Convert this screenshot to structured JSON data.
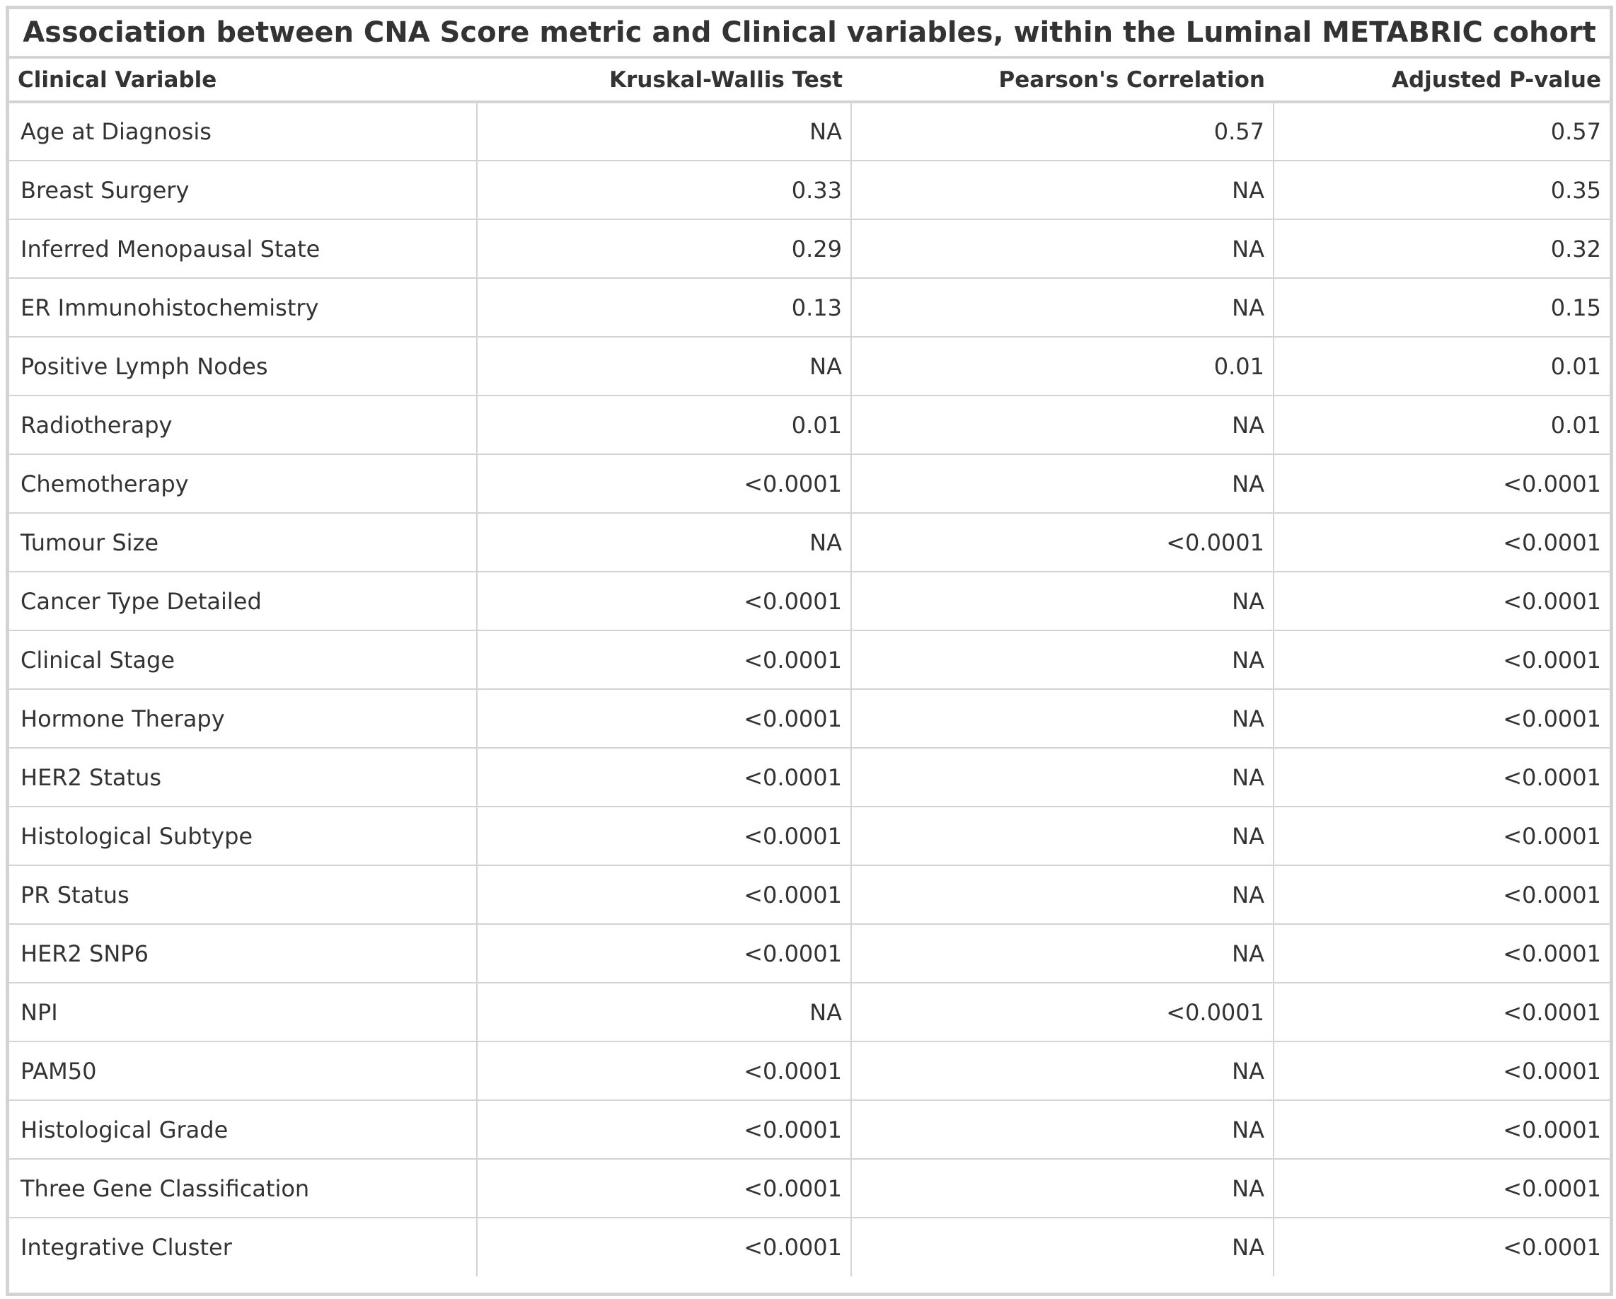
{
  "chart_data": {
    "type": "table",
    "title": "Association between CNA Score metric and Clinical variables, within the Luminal METABRIC cohort",
    "columns": [
      "Clinical Variable",
      "Kruskal-Wallis Test",
      "Pearson's Correlation",
      "Adjusted P-value"
    ],
    "rows": [
      [
        "Age at Diagnosis",
        "NA",
        "0.57",
        "0.57"
      ],
      [
        "Breast Surgery",
        "0.33",
        "NA",
        "0.35"
      ],
      [
        "Inferred Menopausal State",
        "0.29",
        "NA",
        "0.32"
      ],
      [
        "ER Immunohistochemistry",
        "0.13",
        "NA",
        "0.15"
      ],
      [
        "Positive Lymph Nodes",
        "NA",
        "0.01",
        "0.01"
      ],
      [
        "Radiotherapy",
        "0.01",
        "NA",
        "0.01"
      ],
      [
        "Chemotherapy",
        "<0.0001",
        "NA",
        "<0.0001"
      ],
      [
        "Tumour Size",
        "NA",
        "<0.0001",
        "<0.0001"
      ],
      [
        "Cancer Type Detailed",
        "<0.0001",
        "NA",
        "<0.0001"
      ],
      [
        "Clinical Stage",
        "<0.0001",
        "NA",
        "<0.0001"
      ],
      [
        "Hormone Therapy",
        "<0.0001",
        "NA",
        "<0.0001"
      ],
      [
        "HER2 Status",
        "<0.0001",
        "NA",
        "<0.0001"
      ],
      [
        "Histological Subtype",
        "<0.0001",
        "NA",
        "<0.0001"
      ],
      [
        "PR Status",
        "<0.0001",
        "NA",
        "<0.0001"
      ],
      [
        "HER2 SNP6",
        "<0.0001",
        "NA",
        "<0.0001"
      ],
      [
        "NPI",
        "NA",
        "<0.0001",
        "<0.0001"
      ],
      [
        "PAM50",
        "<0.0001",
        "NA",
        "<0.0001"
      ],
      [
        "Histological Grade",
        "<0.0001",
        "NA",
        "<0.0001"
      ],
      [
        "Three Gene Classification",
        "<0.0001",
        "NA",
        "<0.0001"
      ],
      [
        "Integrative Cluster",
        "<0.0001",
        "NA",
        "<0.0001"
      ]
    ]
  },
  "colors": {
    "border": "#d3d3d3",
    "text": "#333333",
    "background": "#ffffff"
  }
}
